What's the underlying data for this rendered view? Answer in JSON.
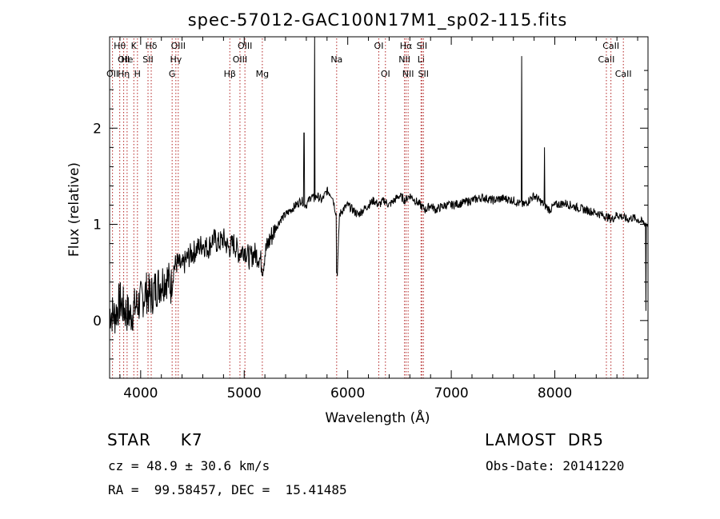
{
  "chart_data": {
    "type": "line",
    "title": "spec-57012-GAC100N17M1_sp02-115.fits",
    "xlabel": "Wavelength (Å)",
    "ylabel": "Flux (relative)",
    "xlim": [
      3700,
      8900
    ],
    "ylim": [
      -0.6,
      2.95
    ],
    "xticks": [
      4000,
      5000,
      6000,
      7000,
      8000
    ],
    "yticks": [
      0,
      1,
      2
    ],
    "grid": false,
    "series": [
      {
        "color": "#000000",
        "x": [
          3700,
          3750,
          3800,
          3850,
          3900,
          3950,
          4000,
          4050,
          4100,
          4150,
          4200,
          4250,
          4300,
          4320,
          4350,
          4400,
          4450,
          4500,
          4550,
          4600,
          4650,
          4700,
          4750,
          4800,
          4850,
          4900,
          4950,
          5000,
          5050,
          5100,
          5150,
          5180,
          5200,
          5250,
          5300,
          5350,
          5400,
          5450,
          5500,
          5550,
          5600,
          5650,
          5680,
          5700,
          5750,
          5800,
          5850,
          5890,
          5900,
          5920,
          5950,
          6000,
          6050,
          6100,
          6150,
          6200,
          6250,
          6300,
          6350,
          6400,
          6450,
          6500,
          6550,
          6600,
          6650,
          6700,
          6750,
          6800,
          6850,
          6900,
          6950,
          7000,
          7100,
          7200,
          7300,
          7400,
          7500,
          7600,
          7650,
          7700,
          7750,
          7800,
          7850,
          7900,
          7950,
          8000,
          8100,
          8200,
          8300,
          8400,
          8500,
          8550,
          8600,
          8650,
          8700,
          8750,
          8800,
          8850,
          8900
        ],
        "y": [
          0.1,
          0.05,
          0.2,
          0.1,
          0.05,
          0.15,
          0.2,
          0.3,
          0.25,
          0.35,
          0.4,
          0.45,
          0.35,
          0.55,
          0.6,
          0.55,
          0.65,
          0.7,
          0.75,
          0.8,
          0.75,
          0.85,
          0.8,
          0.85,
          0.75,
          0.8,
          0.7,
          0.75,
          0.65,
          0.7,
          0.65,
          0.55,
          0.7,
          0.85,
          0.95,
          1.05,
          1.1,
          1.15,
          1.2,
          1.25,
          1.2,
          1.3,
          1.25,
          1.3,
          1.25,
          1.35,
          1.3,
          1.1,
          0.5,
          1.1,
          1.15,
          1.2,
          1.15,
          1.1,
          1.15,
          1.2,
          1.25,
          1.2,
          1.25,
          1.2,
          1.25,
          1.3,
          1.25,
          1.3,
          1.25,
          1.2,
          1.15,
          1.2,
          1.15,
          1.18,
          1.2,
          1.2,
          1.22,
          1.25,
          1.28,
          1.25,
          1.27,
          1.25,
          1.22,
          1.2,
          1.25,
          1.3,
          1.25,
          1.2,
          1.15,
          1.2,
          1.22,
          1.18,
          1.15,
          1.12,
          1.08,
          1.05,
          1.1,
          1.08,
          1.05,
          1.07,
          1.05,
          1.02,
          1.0
        ]
      }
    ],
    "spikes": [
      {
        "x": 5577,
        "y": 1.95
      },
      {
        "x": 5680,
        "y": 2.95
      },
      {
        "x": 5893,
        "y": 0.5
      },
      {
        "x": 7680,
        "y": 2.75
      },
      {
        "x": 7900,
        "y": 1.8
      },
      {
        "x": 8880,
        "y": 0.1
      }
    ],
    "lines": [
      {
        "x": 3728,
        "labels": [
          {
            "text": "OII",
            "row": 2
          }
        ]
      },
      {
        "x": 3798,
        "labels": [
          {
            "text": "Hθ",
            "row": 0
          }
        ]
      },
      {
        "x": 3836,
        "labels": [
          {
            "text": "OII",
            "row": 1
          },
          {
            "text": "Hη",
            "row": 2
          }
        ]
      },
      {
        "x": 3869,
        "labels": [
          {
            "text": "He",
            "row": 1
          }
        ]
      },
      {
        "x": 3934,
        "labels": [
          {
            "text": "K",
            "row": 0
          }
        ]
      },
      {
        "x": 3969,
        "labels": [
          {
            "text": "H",
            "row": 2
          }
        ]
      },
      {
        "x": 4071,
        "labels": [
          {
            "text": "SII",
            "row": 1
          }
        ]
      },
      {
        "x": 4102,
        "labels": [
          {
            "text": "Hδ",
            "row": 0
          }
        ]
      },
      {
        "x": 4304,
        "labels": [
          {
            "text": "G",
            "row": 2
          }
        ]
      },
      {
        "x": 4340,
        "labels": [
          {
            "text": "Hγ",
            "row": 1
          }
        ]
      },
      {
        "x": 4363,
        "labels": [
          {
            "text": "OIII",
            "row": 0
          }
        ]
      },
      {
        "x": 4861,
        "labels": [
          {
            "text": "Hβ",
            "row": 2
          }
        ]
      },
      {
        "x": 4959,
        "labels": [
          {
            "text": "OIII",
            "row": 1
          }
        ]
      },
      {
        "x": 5007,
        "labels": [
          {
            "text": "OIII",
            "row": 0
          }
        ]
      },
      {
        "x": 5175,
        "labels": [
          {
            "text": "Mg",
            "row": 2
          }
        ]
      },
      {
        "x": 5893,
        "labels": [
          {
            "text": "Na",
            "row": 1
          }
        ]
      },
      {
        "x": 6300,
        "labels": [
          {
            "text": "OI",
            "row": 0
          }
        ]
      },
      {
        "x": 6364,
        "labels": [
          {
            "text": "OI",
            "row": 2
          }
        ]
      },
      {
        "x": 6548,
        "labels": [
          {
            "text": "NII",
            "row": 1
          }
        ]
      },
      {
        "x": 6563,
        "labels": [
          {
            "text": "Hα",
            "row": 0
          }
        ]
      },
      {
        "x": 6583,
        "labels": [
          {
            "text": "NII",
            "row": 2
          }
        ]
      },
      {
        "x": 6708,
        "labels": [
          {
            "text": "Li",
            "row": 1
          }
        ]
      },
      {
        "x": 6716,
        "labels": [
          {
            "text": "SII",
            "row": 0
          }
        ]
      },
      {
        "x": 6731,
        "labels": [
          {
            "text": "SII",
            "row": 2
          }
        ]
      },
      {
        "x": 8498,
        "labels": [
          {
            "text": "CaII",
            "row": 1
          }
        ]
      },
      {
        "x": 8542,
        "labels": [
          {
            "text": "CaII",
            "row": 0
          }
        ]
      },
      {
        "x": 8662,
        "labels": [
          {
            "text": "CaII",
            "row": 2
          }
        ]
      }
    ],
    "line_color": "#b22222"
  },
  "info": {
    "star_class": "STAR     K7",
    "survey": "LAMOST  DR5",
    "cz": "cz = 48.9 ± 30.6 km/s",
    "obs_date": "Obs-Date: 20141220",
    "ra_dec": "RA =  99.58457, DEC =  15.41485"
  }
}
